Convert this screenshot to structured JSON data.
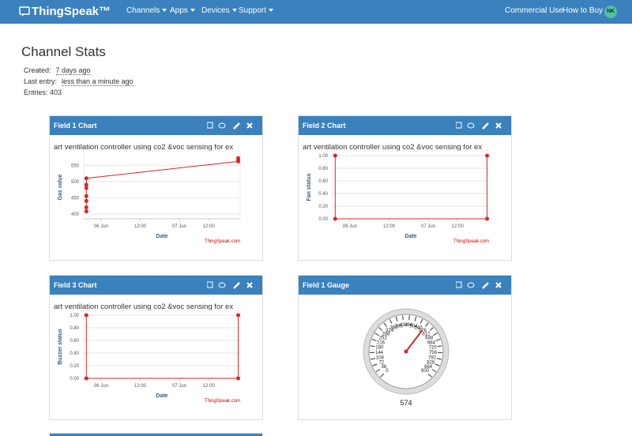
{
  "navbar": {
    "brand": "ThingSpeak™",
    "menus": [
      "Channels",
      "Apps",
      "Devices",
      "Support"
    ],
    "right": [
      "Commercial Use",
      "How to Buy"
    ],
    "avatar": "NK"
  },
  "stats": {
    "title": "Channel Stats",
    "created_label": "Created:",
    "created": "7 days ago",
    "last_entry_label": "Last entry:",
    "last_entry": "less than a minute ago",
    "entries_label": "Entries:",
    "entries": 403
  },
  "panels": [
    {
      "title": "Field 1 Chart",
      "chart_data": {
        "type": "line",
        "title": "art ventilation controller using co2 &voc sensing for ex",
        "xlabel": "Date",
        "ylabel": "Gas value",
        "credit": "ThingSpeak.com",
        "color": "#d62728",
        "x": [
          19.5,
          19.5,
          19.5,
          19.5,
          19.5,
          19.5,
          19.5,
          66,
          66,
          66
        ],
        "values": [
          408,
          420,
          440,
          455,
          480,
          490,
          510,
          562,
          566,
          572
        ],
        "xlim": [
          18.7,
          66.6
        ],
        "xticks": [
          {
            "value": 24,
            "label": "06 Jun"
          },
          {
            "value": 36,
            "label": "12:00"
          },
          {
            "value": 48,
            "label": "07 Jun"
          },
          {
            "value": 57,
            "label": "12:00"
          }
        ],
        "ylim": [
          385,
          580
        ],
        "yticks": [
          400,
          450,
          500,
          550
        ],
        "grid": true
      }
    },
    {
      "title": "Field 2 Chart",
      "chart_data": {
        "type": "line",
        "title": "art ventilation controller using co2 &voc sensing for ex",
        "xlabel": "Date",
        "ylabel": "Fan status",
        "credit": "ThingSpeak.com",
        "color": "#d62728",
        "x": [
          19.5,
          19.5,
          66,
          66
        ],
        "values": [
          1,
          0,
          0,
          1
        ],
        "xlim": [
          18.7,
          66.6
        ],
        "xticks": [
          {
            "value": 24,
            "label": "06 Jun"
          },
          {
            "value": 36,
            "label": "12:00"
          },
          {
            "value": 48,
            "label": "07 Jun"
          },
          {
            "value": 57,
            "label": "12:00"
          }
        ],
        "ylim": [
          0,
          1
        ],
        "yticks": [
          {
            "value": 0,
            "label": "0.00"
          },
          {
            "value": 0.2,
            "label": "0.20"
          },
          {
            "value": 0.4,
            "label": "0.40"
          },
          {
            "value": 0.6,
            "label": "0.60"
          },
          {
            "value": 0.8,
            "label": "0.80"
          },
          {
            "value": 1,
            "label": "1.00"
          }
        ],
        "grid": true
      }
    },
    {
      "title": "Field 3 Chart",
      "chart_data": {
        "type": "line",
        "title": "art ventilation controller using co2 &voc sensing for ex",
        "xlabel": "Date",
        "ylabel": "Buzzer status",
        "credit": "ThingSpeak.com",
        "color": "#d62728",
        "x": [
          19.5,
          19.5,
          66,
          66
        ],
        "values": [
          1,
          0,
          0,
          1
        ],
        "xlim": [
          18.7,
          66.6
        ],
        "xticks": [
          {
            "value": 24,
            "label": "06 Jun"
          },
          {
            "value": 36,
            "label": "12:00"
          },
          {
            "value": 48,
            "label": "07 Jun"
          },
          {
            "value": 57,
            "label": "12:00"
          }
        ],
        "ylim": [
          0,
          1
        ],
        "yticks": [
          {
            "value": 0,
            "label": "0.00"
          },
          {
            "value": 0.2,
            "label": "0.20"
          },
          {
            "value": 0.4,
            "label": "0.40"
          },
          {
            "value": 0.6,
            "label": "0.60"
          },
          {
            "value": 0.8,
            "label": "0.80"
          },
          {
            "value": 1,
            "label": "1.00"
          }
        ],
        "grid": true
      }
    },
    {
      "title": "Field 1 Gauge",
      "chart_data": {
        "type": "gauge",
        "value": 574,
        "lim": [
          0,
          900
        ],
        "color": "#d62728",
        "ticks": [
          0,
          36,
          72,
          108,
          144,
          180,
          216,
          252,
          288,
          324,
          360,
          396,
          432,
          468,
          504,
          540,
          576,
          612,
          648,
          684,
          720,
          756,
          792,
          828,
          864,
          900
        ]
      }
    }
  ]
}
